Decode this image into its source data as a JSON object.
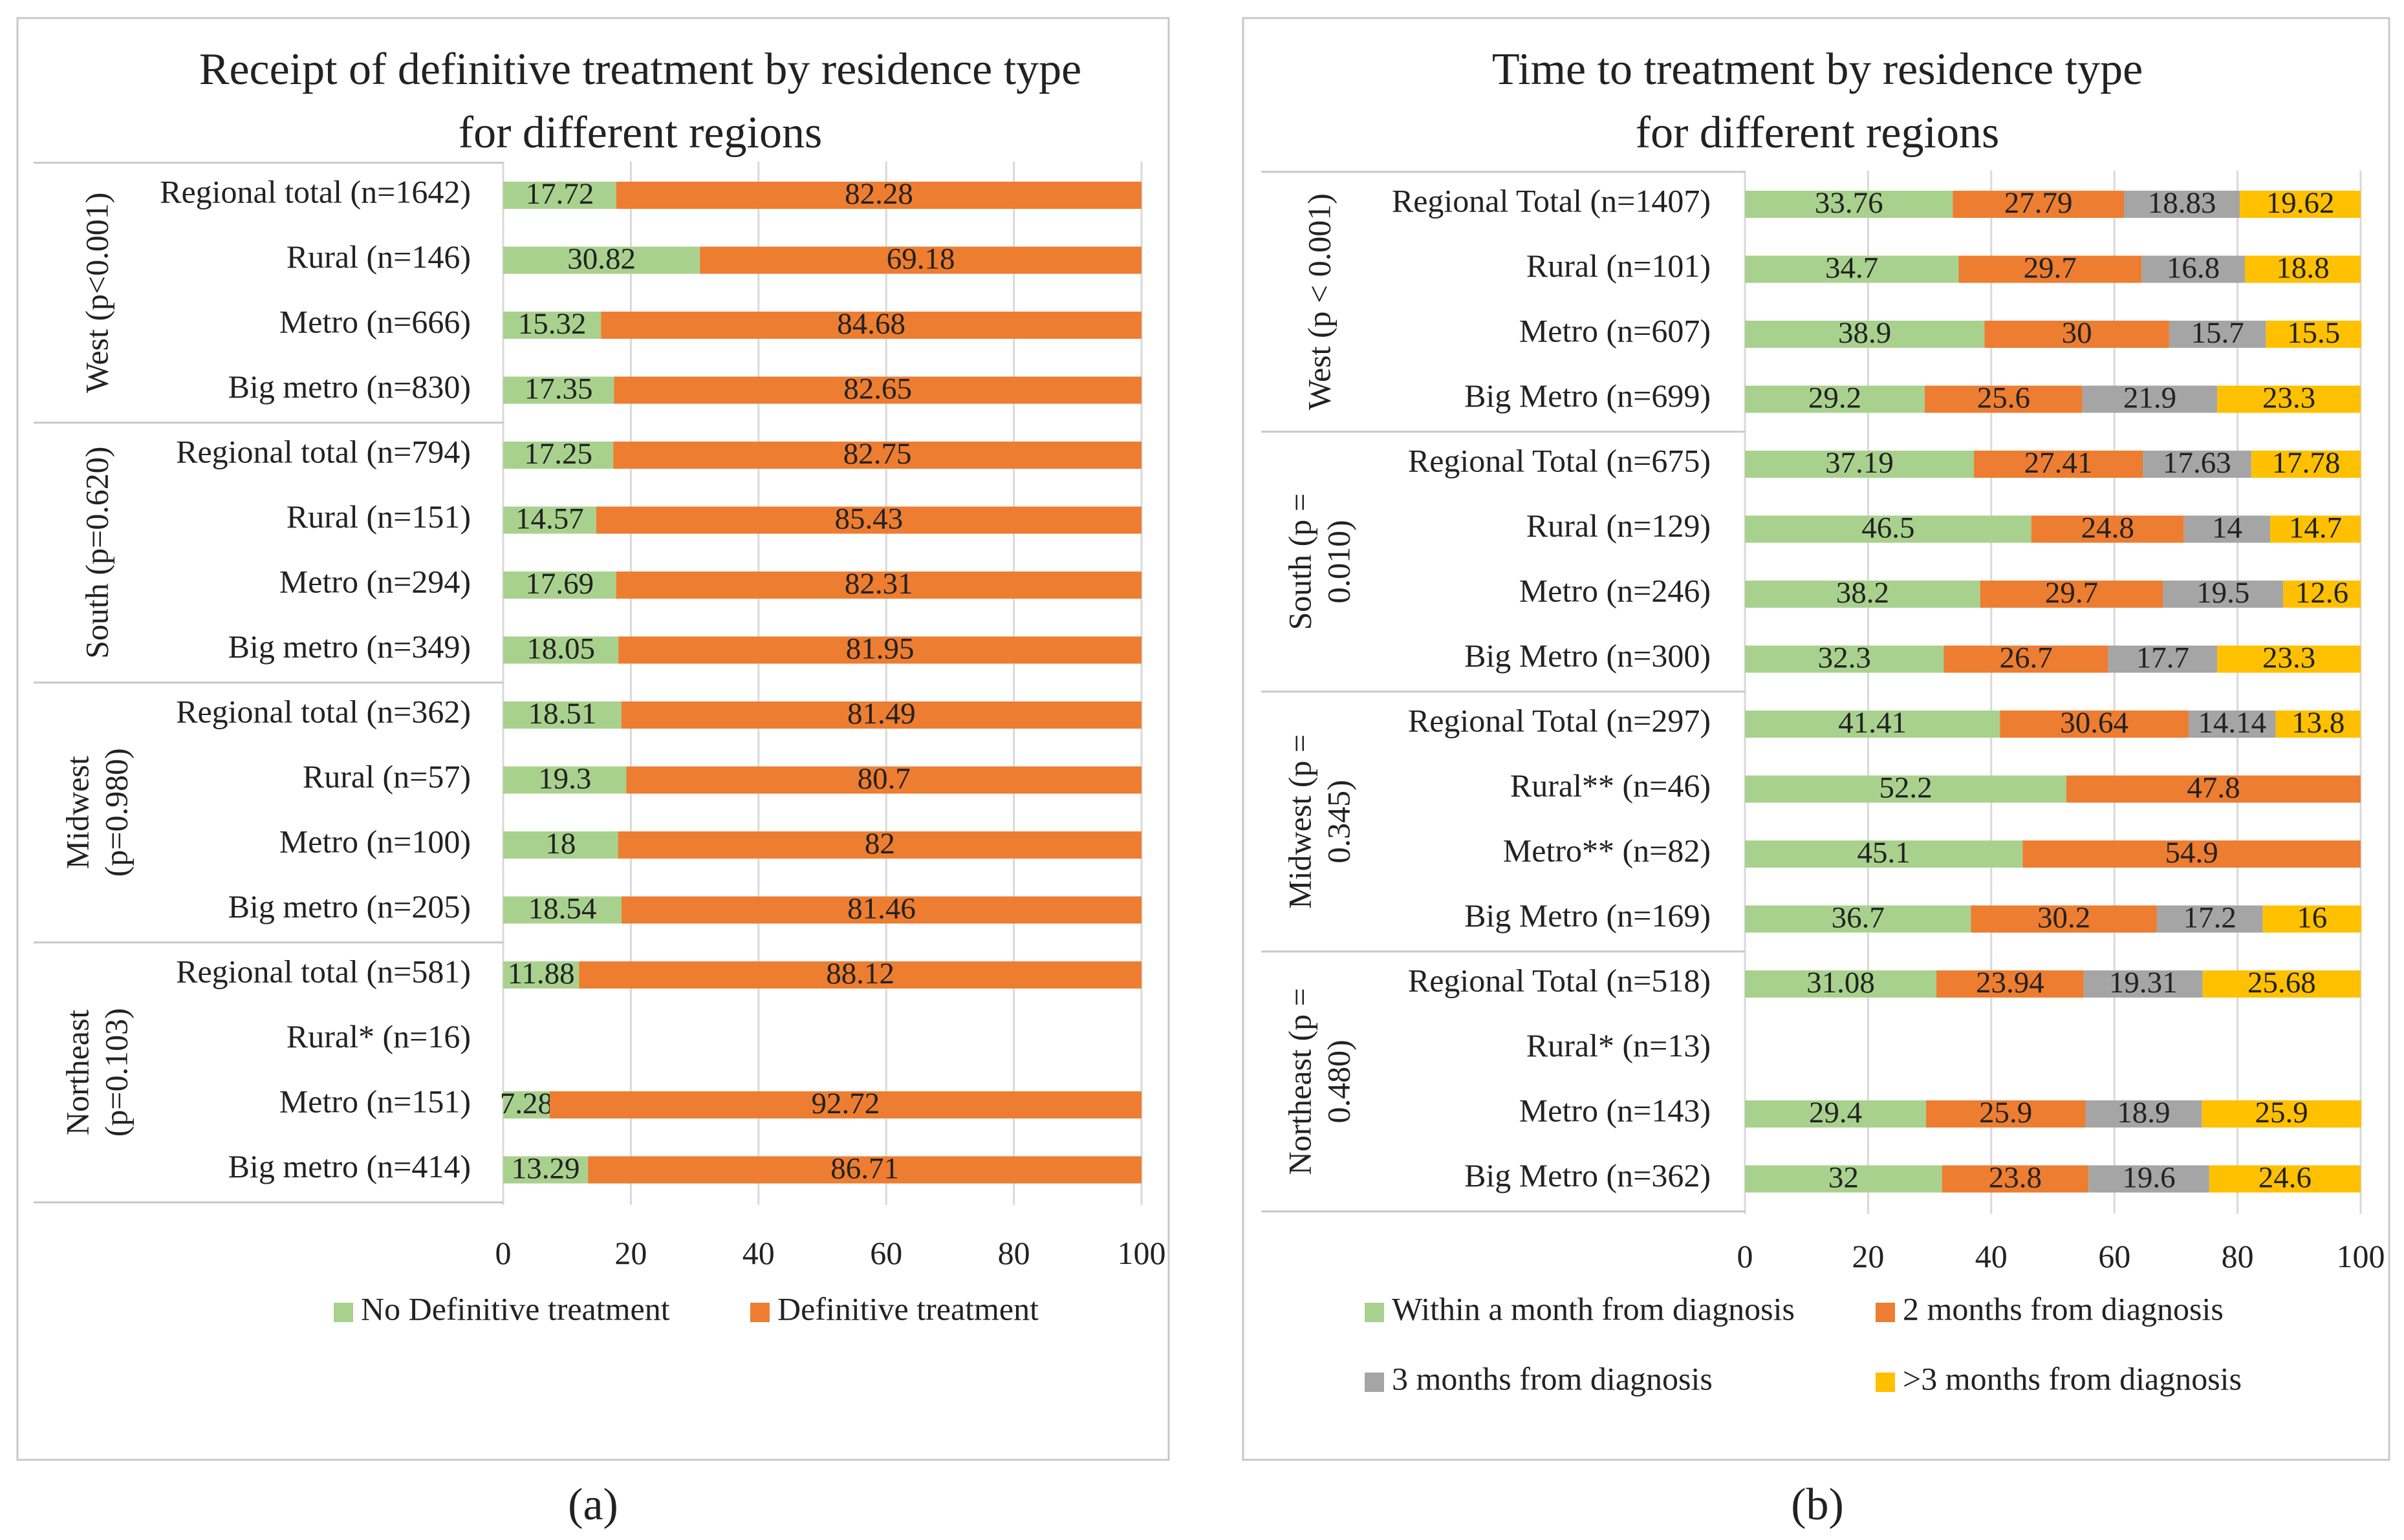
{
  "colors": {
    "green": "#a9d18e",
    "orange": "#ed7d31",
    "gray": "#a5a5a5",
    "yellow": "#ffc000"
  },
  "chart_data": [
    {
      "type": "bar",
      "orientation": "horizontal",
      "stacked": true,
      "title_line1": "Receipt of definitive treatment by residence type",
      "title_line2": "for different regions",
      "panel_label": "(a)",
      "xlim": [
        0,
        100
      ],
      "xticks": [
        "0",
        "20",
        "40",
        "60",
        "80",
        "100"
      ],
      "grid": true,
      "legend_position": "bottom",
      "series": [
        {
          "name": "No Definitive treatment",
          "color": "#a9d18e"
        },
        {
          "name": "Definitive treatment",
          "color": "#ed7d31"
        }
      ],
      "groups": [
        {
          "label": "West (p<0.001)",
          "lines": [
            "West (p<0.001)"
          ],
          "rows": [
            {
              "label": "Regional total (n=1642)",
              "values": [
                17.72,
                82.28
              ],
              "labels": [
                "17.72",
                "82.28"
              ]
            },
            {
              "label": "Rural (n=146)",
              "values": [
                30.82,
                69.18
              ],
              "labels": [
                "30.82",
                "69.18"
              ]
            },
            {
              "label": "Metro (n=666)",
              "values": [
                15.32,
                84.68
              ],
              "labels": [
                "15.32",
                "84.68"
              ]
            },
            {
              "label": "Big metro (n=830)",
              "values": [
                17.35,
                82.65
              ],
              "labels": [
                "17.35",
                "82.65"
              ]
            }
          ]
        },
        {
          "label": "South (p=0.620)",
          "lines": [
            "South (p=0.620)"
          ],
          "rows": [
            {
              "label": "Regional total (n=794)",
              "values": [
                17.25,
                82.75
              ],
              "labels": [
                "17.25",
                "82.75"
              ]
            },
            {
              "label": "Rural (n=151)",
              "values": [
                14.57,
                85.43
              ],
              "labels": [
                "14.57",
                "85.43"
              ]
            },
            {
              "label": "Metro (n=294)",
              "values": [
                17.69,
                82.31
              ],
              "labels": [
                "17.69",
                "82.31"
              ]
            },
            {
              "label": "Big metro (n=349)",
              "values": [
                18.05,
                81.95
              ],
              "labels": [
                "18.05",
                "81.95"
              ]
            }
          ]
        },
        {
          "label": "Midwest (p=0.980)",
          "lines": [
            "Midwest",
            "(p=0.980)"
          ],
          "rows": [
            {
              "label": "Regional total (n=362)",
              "values": [
                18.51,
                81.49
              ],
              "labels": [
                "18.51",
                "81.49"
              ]
            },
            {
              "label": "Rural (n=57)",
              "values": [
                19.3,
                80.7
              ],
              "labels": [
                "19.3",
                "80.7"
              ]
            },
            {
              "label": "Metro (n=100)",
              "values": [
                18,
                82
              ],
              "labels": [
                "18",
                "82"
              ]
            },
            {
              "label": "Big metro (n=205)",
              "values": [
                18.54,
                81.46
              ],
              "labels": [
                "18.54",
                "81.46"
              ]
            }
          ]
        },
        {
          "label": "Northeast (p=0.103)",
          "lines": [
            "Northeast",
            "(p=0.103)"
          ],
          "rows": [
            {
              "label": "Regional total (n=581)",
              "values": [
                11.88,
                88.12
              ],
              "labels": [
                "11.88",
                "88.12"
              ]
            },
            {
              "label": "Rural* (n=16)",
              "values": [],
              "labels": []
            },
            {
              "label": "Metro (n=151)",
              "values": [
                7.28,
                92.72
              ],
              "labels": [
                "7.28",
                "92.72"
              ]
            },
            {
              "label": "Big metro (n=414)",
              "values": [
                13.29,
                86.71
              ],
              "labels": [
                "13.29",
                "86.71"
              ]
            }
          ]
        }
      ]
    },
    {
      "type": "bar",
      "orientation": "horizontal",
      "stacked": true,
      "title_line1": "Time to treatment by residence type",
      "title_line2": "for different regions",
      "panel_label": "(b)",
      "xlim": [
        0,
        100
      ],
      "xticks": [
        "0",
        "20",
        "40",
        "60",
        "80",
        "100"
      ],
      "grid": true,
      "legend_position": "bottom",
      "series": [
        {
          "name": "Within a month from diagnosis",
          "color": "#a9d18e"
        },
        {
          "name": "2 months from diagnosis",
          "color": "#ed7d31"
        },
        {
          "name": "3 months from diagnosis",
          "color": "#a5a5a5"
        },
        {
          "name": ">3 months from diagnosis",
          "color": "#ffc000"
        }
      ],
      "groups": [
        {
          "label": "West (p < 0.001)",
          "lines": [
            "West (p < 0.001)"
          ],
          "rows": [
            {
              "label": "Regional Total (n=1407)",
              "values": [
                33.76,
                27.79,
                18.83,
                19.62
              ],
              "labels": [
                "33.76",
                "27.79",
                "18.83",
                "19.62"
              ]
            },
            {
              "label": "Rural (n=101)",
              "values": [
                34.7,
                29.7,
                16.8,
                18.8
              ],
              "labels": [
                "34.7",
                "29.7",
                "16.8",
                "18.8"
              ]
            },
            {
              "label": "Metro (n=607)",
              "values": [
                38.9,
                30,
                15.7,
                15.5
              ],
              "labels": [
                "38.9",
                "30",
                "15.7",
                "15.5"
              ]
            },
            {
              "label": "Big Metro (n=699)",
              "values": [
                29.2,
                25.6,
                21.9,
                23.3
              ],
              "labels": [
                "29.2",
                "25.6",
                "21.9",
                "23.3"
              ]
            }
          ]
        },
        {
          "label": "South (p = 0.010)",
          "lines": [
            "South (p =",
            "0.010)"
          ],
          "rows": [
            {
              "label": "Regional Total (n=675)",
              "values": [
                37.19,
                27.41,
                17.63,
                17.78
              ],
              "labels": [
                "37.19",
                "27.41",
                "17.63",
                "17.78"
              ]
            },
            {
              "label": "Rural (n=129)",
              "values": [
                46.5,
                24.8,
                14,
                14.7
              ],
              "labels": [
                "46.5",
                "24.8",
                "14",
                "14.7"
              ]
            },
            {
              "label": "Metro (n=246)",
              "values": [
                38.2,
                29.7,
                19.5,
                12.6
              ],
              "labels": [
                "38.2",
                "29.7",
                "19.5",
                "12.6"
              ]
            },
            {
              "label": "Big Metro (n=300)",
              "values": [
                32.3,
                26.7,
                17.7,
                23.3
              ],
              "labels": [
                "32.3",
                "26.7",
                "17.7",
                "23.3"
              ]
            }
          ]
        },
        {
          "label": "Midwest (p = 0.345)",
          "lines": [
            "Midwest (p =",
            "0.345)"
          ],
          "rows": [
            {
              "label": "Regional Total (n=297)",
              "values": [
                41.41,
                30.64,
                14.14,
                13.8
              ],
              "labels": [
                "41.41",
                "30.64",
                "14.14",
                "13.8"
              ]
            },
            {
              "label": "Rural** (n=46)",
              "values": [
                52.2,
                47.8
              ],
              "labels": [
                "52.2",
                "47.8"
              ]
            },
            {
              "label": "Metro** (n=82)",
              "values": [
                45.1,
                54.9
              ],
              "labels": [
                "45.1",
                "54.9"
              ]
            },
            {
              "label": "Big Metro (n=169)",
              "values": [
                36.7,
                30.2,
                17.2,
                16
              ],
              "labels": [
                "36.7",
                "30.2",
                "17.2",
                "16"
              ]
            }
          ]
        },
        {
          "label": "Northeast (p = 0.480)",
          "lines": [
            "Northeast (p =",
            "0.480)"
          ],
          "rows": [
            {
              "label": "Regional Total (n=518)",
              "values": [
                31.08,
                23.94,
                19.31,
                25.68
              ],
              "labels": [
                "31.08",
                "23.94",
                "19.31",
                "25.68"
              ]
            },
            {
              "label": "Rural* (n=13)",
              "values": [],
              "labels": []
            },
            {
              "label": "Metro (n=143)",
              "values": [
                29.4,
                25.9,
                18.9,
                25.9
              ],
              "labels": [
                "29.4",
                "25.9",
                "18.9",
                "25.9"
              ]
            },
            {
              "label": "Big Metro (n=362)",
              "values": [
                32,
                23.8,
                19.6,
                24.6
              ],
              "labels": [
                "32",
                "23.8",
                "19.6",
                "24.6"
              ]
            }
          ]
        }
      ]
    }
  ]
}
